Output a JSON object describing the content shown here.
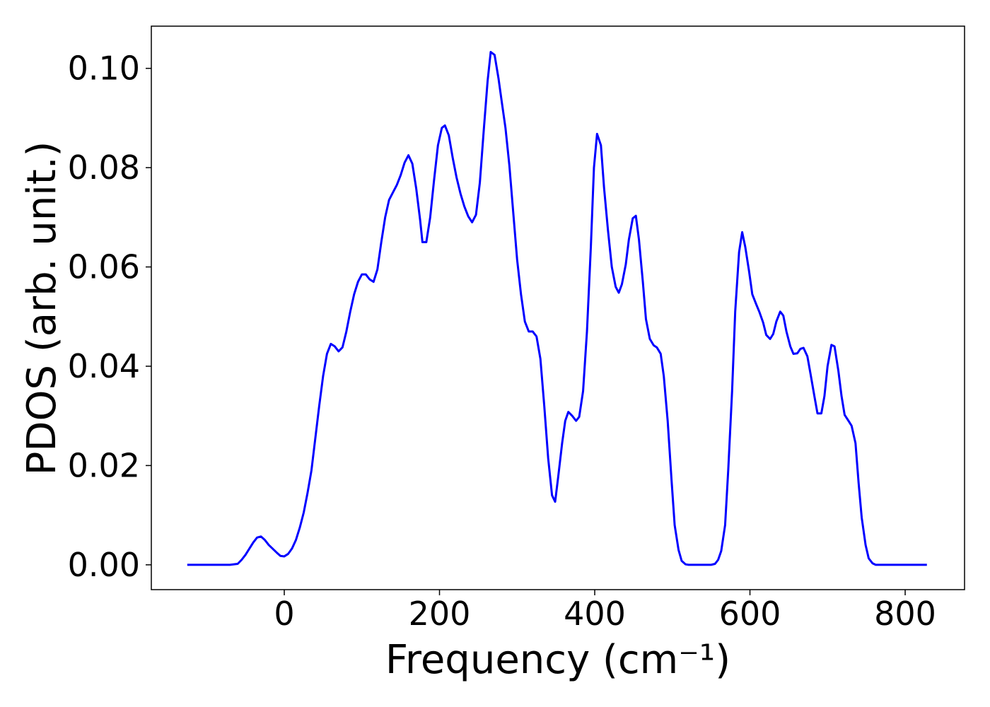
{
  "chart_data": {
    "type": "line",
    "xlabel": "Frequency (cm⁻¹)",
    "ylabel": "PDOS (arb. unit.)",
    "xlim": [
      -171.3,
      876.5
    ],
    "ylim": [
      -0.005,
      0.1085
    ],
    "xticks": [
      0,
      200,
      400,
      600,
      800
    ],
    "yticks": [
      {
        "value": 0,
        "label": "0.00"
      },
      {
        "value": 0.02,
        "label": "0.02"
      },
      {
        "value": 0.04,
        "label": "0.04"
      },
      {
        "value": 0.06,
        "label": "0.06"
      },
      {
        "value": 0.08,
        "label": "0.08"
      },
      {
        "value": 0.1,
        "label": "0.10"
      }
    ],
    "grid": false,
    "x": [
      -125,
      -70,
      -60,
      -55,
      -50,
      -40,
      -35,
      -30,
      -25,
      -20,
      -10,
      -5,
      0,
      5,
      10,
      15,
      20,
      25,
      30,
      35,
      40,
      45,
      50,
      55,
      60,
      65,
      70,
      75,
      80,
      85,
      90,
      95,
      100,
      105,
      110,
      115,
      120,
      125,
      130,
      135,
      140,
      145,
      150,
      155,
      160,
      165,
      170,
      175,
      178,
      183,
      188,
      193,
      198,
      203,
      207,
      212,
      217,
      222,
      227,
      232,
      237,
      242,
      247,
      252,
      257,
      262,
      266,
      271,
      276,
      280,
      285,
      290,
      295,
      300,
      305,
      310,
      315,
      320,
      325,
      330,
      335,
      340,
      345,
      349,
      353,
      358,
      362,
      366,
      371,
      376,
      380,
      385,
      390,
      395,
      399,
      403,
      408,
      412,
      417,
      422,
      427,
      431,
      435,
      440,
      444,
      449,
      453,
      457,
      462,
      466,
      471,
      476,
      480,
      485,
      489,
      494,
      499,
      503,
      508,
      512,
      517,
      521,
      550,
      555,
      559,
      563,
      568,
      572,
      577,
      581,
      586,
      590,
      594,
      599,
      603,
      608,
      612,
      617,
      621,
      626,
      630,
      634,
      639,
      643,
      647,
      652,
      656,
      661,
      665,
      669,
      674,
      678,
      683,
      687,
      692,
      696,
      700,
      705,
      709,
      714,
      718,
      722,
      727,
      731,
      736,
      740,
      744,
      749,
      753,
      758,
      762,
      828
    ],
    "series": [
      {
        "name": "PDOS",
        "color": "#0000ff",
        "values": [
          0,
          0,
          0.0002,
          0.001,
          0.002,
          0.0045,
          0.0055,
          0.0057,
          0.005,
          0.004,
          0.0025,
          0.0018,
          0.0017,
          0.0022,
          0.0033,
          0.005,
          0.0075,
          0.0105,
          0.0145,
          0.019,
          0.0255,
          0.032,
          0.038,
          0.0425,
          0.0445,
          0.044,
          0.043,
          0.0438,
          0.047,
          0.051,
          0.0545,
          0.057,
          0.0585,
          0.0585,
          0.0575,
          0.057,
          0.0595,
          0.065,
          0.07,
          0.0735,
          0.075,
          0.0765,
          0.0785,
          0.081,
          0.0825,
          0.0808,
          0.0758,
          0.0695,
          0.065,
          0.065,
          0.07,
          0.0775,
          0.0845,
          0.088,
          0.0885,
          0.0865,
          0.082,
          0.078,
          0.0748,
          0.0722,
          0.0702,
          0.069,
          0.0705,
          0.077,
          0.0875,
          0.0975,
          0.1033,
          0.1027,
          0.098,
          0.0935,
          0.088,
          0.0805,
          0.071,
          0.0615,
          0.0545,
          0.049,
          0.047,
          0.047,
          0.046,
          0.0415,
          0.032,
          0.0215,
          0.014,
          0.0127,
          0.0178,
          0.0245,
          0.029,
          0.0308,
          0.03,
          0.029,
          0.0298,
          0.035,
          0.047,
          0.064,
          0.08,
          0.0868,
          0.0845,
          0.076,
          0.0675,
          0.06,
          0.056,
          0.0548,
          0.0565,
          0.0605,
          0.0655,
          0.0698,
          0.0703,
          0.0655,
          0.057,
          0.0495,
          0.0455,
          0.0442,
          0.0438,
          0.0425,
          0.038,
          0.029,
          0.017,
          0.008,
          0.003,
          0.0008,
          0.0001,
          0,
          0,
          0.0002,
          0.001,
          0.0028,
          0.008,
          0.019,
          0.035,
          0.051,
          0.063,
          0.067,
          0.064,
          0.059,
          0.0545,
          0.0525,
          0.051,
          0.0488,
          0.0463,
          0.0455,
          0.0465,
          0.049,
          0.051,
          0.0502,
          0.047,
          0.044,
          0.0425,
          0.0426,
          0.0435,
          0.0437,
          0.042,
          0.0385,
          0.034,
          0.0305,
          0.0305,
          0.034,
          0.04,
          0.0443,
          0.044,
          0.039,
          0.034,
          0.0302,
          0.029,
          0.028,
          0.0245,
          0.0165,
          0.0095,
          0.004,
          0.0013,
          0.0003,
          0,
          0
        ]
      }
    ]
  }
}
